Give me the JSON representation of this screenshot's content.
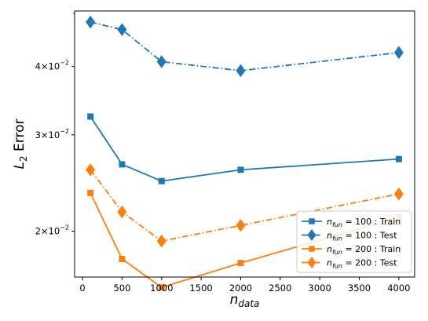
{
  "chart_data": {
    "type": "line",
    "xlabel_base": "n",
    "xlabel_sub": "data",
    "ylabel_base": "L",
    "ylabel_sub": "2",
    "ylabel_rest": " Error",
    "xlim": [
      -100,
      4200
    ],
    "ylim": [
      0.0165,
      0.0505
    ],
    "yscale": "log",
    "x_ticks": [
      0,
      500,
      1000,
      1500,
      2000,
      2500,
      3000,
      3500,
      4000
    ],
    "x_tick_labels": [
      "0",
      "500",
      "1000",
      "1500",
      "2000",
      "2500",
      "3000",
      "3500",
      "4000"
    ],
    "y_ticks": [
      0.02,
      0.03,
      0.04
    ],
    "y_tick_labels": [
      {
        "mant": "2",
        "base": "×10",
        "exp": "−2"
      },
      {
        "mant": "3",
        "base": "×10",
        "exp": "−2"
      },
      {
        "mant": "4",
        "base": "×10",
        "exp": "−2"
      }
    ],
    "grid": false,
    "legend_position": "lower-right",
    "x": [
      100,
      500,
      1000,
      2000,
      4000
    ],
    "series": [
      {
        "name_n": "n",
        "name_sub": "fun",
        "name_rest": " = 100 :  Train",
        "color": "#1f77b4",
        "linestyle": "solid",
        "marker": "square",
        "values": [
          0.0324,
          0.0265,
          0.0247,
          0.0259,
          0.0271
        ]
      },
      {
        "name_n": "n",
        "name_sub": "fun",
        "name_rest": " = 100 :  Test",
        "color": "#1f77b4",
        "linestyle": "dashdot",
        "marker": "diamond",
        "values": [
          0.0482,
          0.0467,
          0.0408,
          0.0393,
          0.0424
        ]
      },
      {
        "name_n": "n",
        "name_sub": "fun",
        "name_rest": " = 200 :  Train",
        "color": "#ff7f0e",
        "linestyle": "solid",
        "marker": "square",
        "values": [
          0.0235,
          0.0178,
          0.0158,
          0.0175,
          0.0212
        ]
      },
      {
        "name_n": "n",
        "name_sub": "fun",
        "name_rest": " = 200 :  Test",
        "color": "#ff7f0e",
        "linestyle": "dashdot",
        "marker": "diamond",
        "values": [
          0.0259,
          0.0217,
          0.0192,
          0.0205,
          0.0234
        ]
      }
    ]
  }
}
